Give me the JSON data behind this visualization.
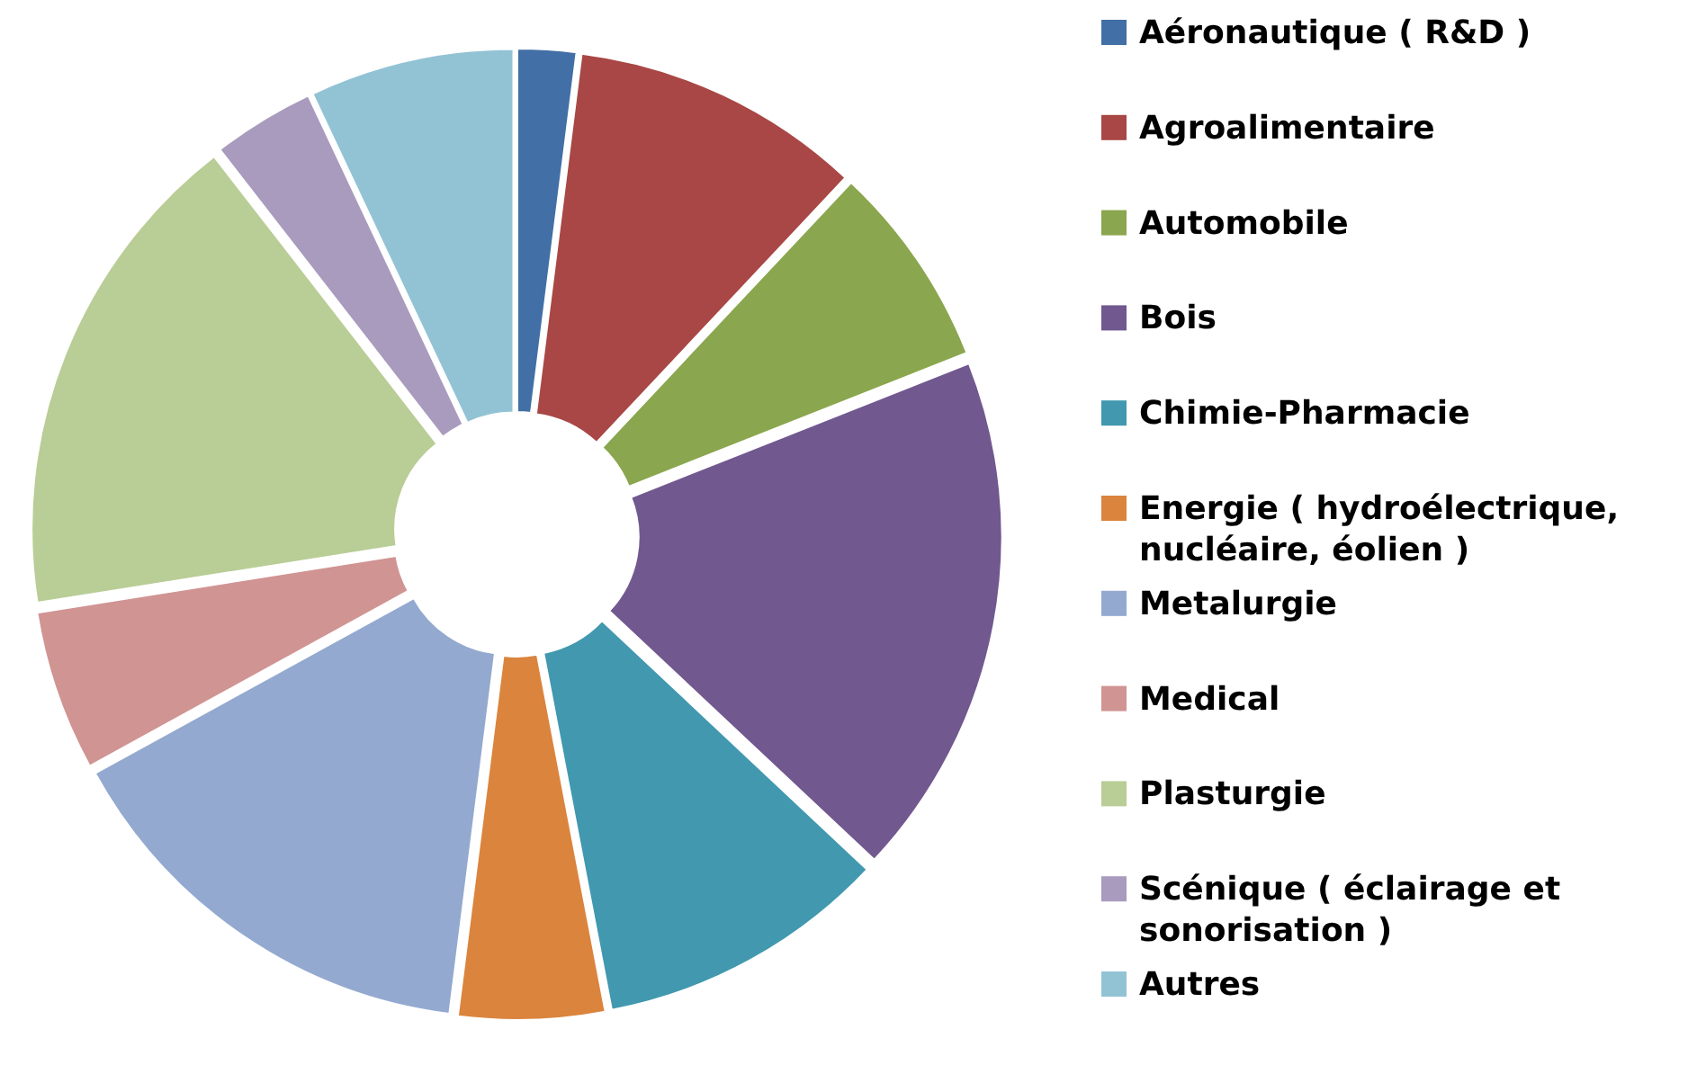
{
  "chart_data": {
    "type": "donut",
    "categories": [
      "Aéronautique ( R&D )",
      "Agroalimentaire",
      "Automobile",
      "Bois",
      "Chimie-Pharmacie",
      "Energie ( hydroélectrique, nucléaire, éolien )",
      "Metalurgie",
      "Medical",
      "Plasturgie",
      "Scénique ( éclairage et sonorisation )",
      "Autres"
    ],
    "values": [
      2,
      10,
      7,
      18,
      10,
      5,
      15,
      5.5,
      17,
      3.5,
      7
    ],
    "colors": [
      "#426fa5",
      "#a84745",
      "#8aa64e",
      "#71588f",
      "#4198af",
      "#db843d",
      "#93a9cf",
      "#d09493",
      "#b9cd96",
      "#a99bbd",
      "#92c3d5"
    ],
    "legend": "right"
  }
}
